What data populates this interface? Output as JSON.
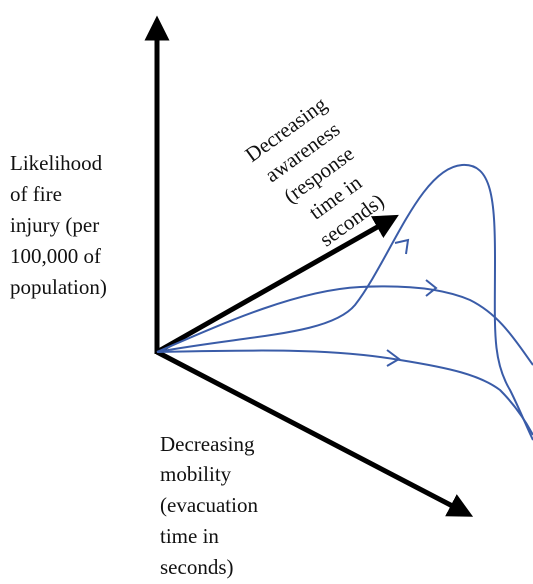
{
  "axes": {
    "vertical": {
      "label": [
        "Likelihood",
        "of fire",
        "injury (per",
        "100,000 of",
        "population)"
      ]
    },
    "diagonal": {
      "label": [
        "Decreasing",
        "awareness",
        "(response",
        "time in",
        "seconds)"
      ]
    },
    "downward": {
      "label": [
        "Decreasing",
        "mobility",
        "(evacuation",
        "time in",
        "seconds)"
      ]
    }
  }
}
